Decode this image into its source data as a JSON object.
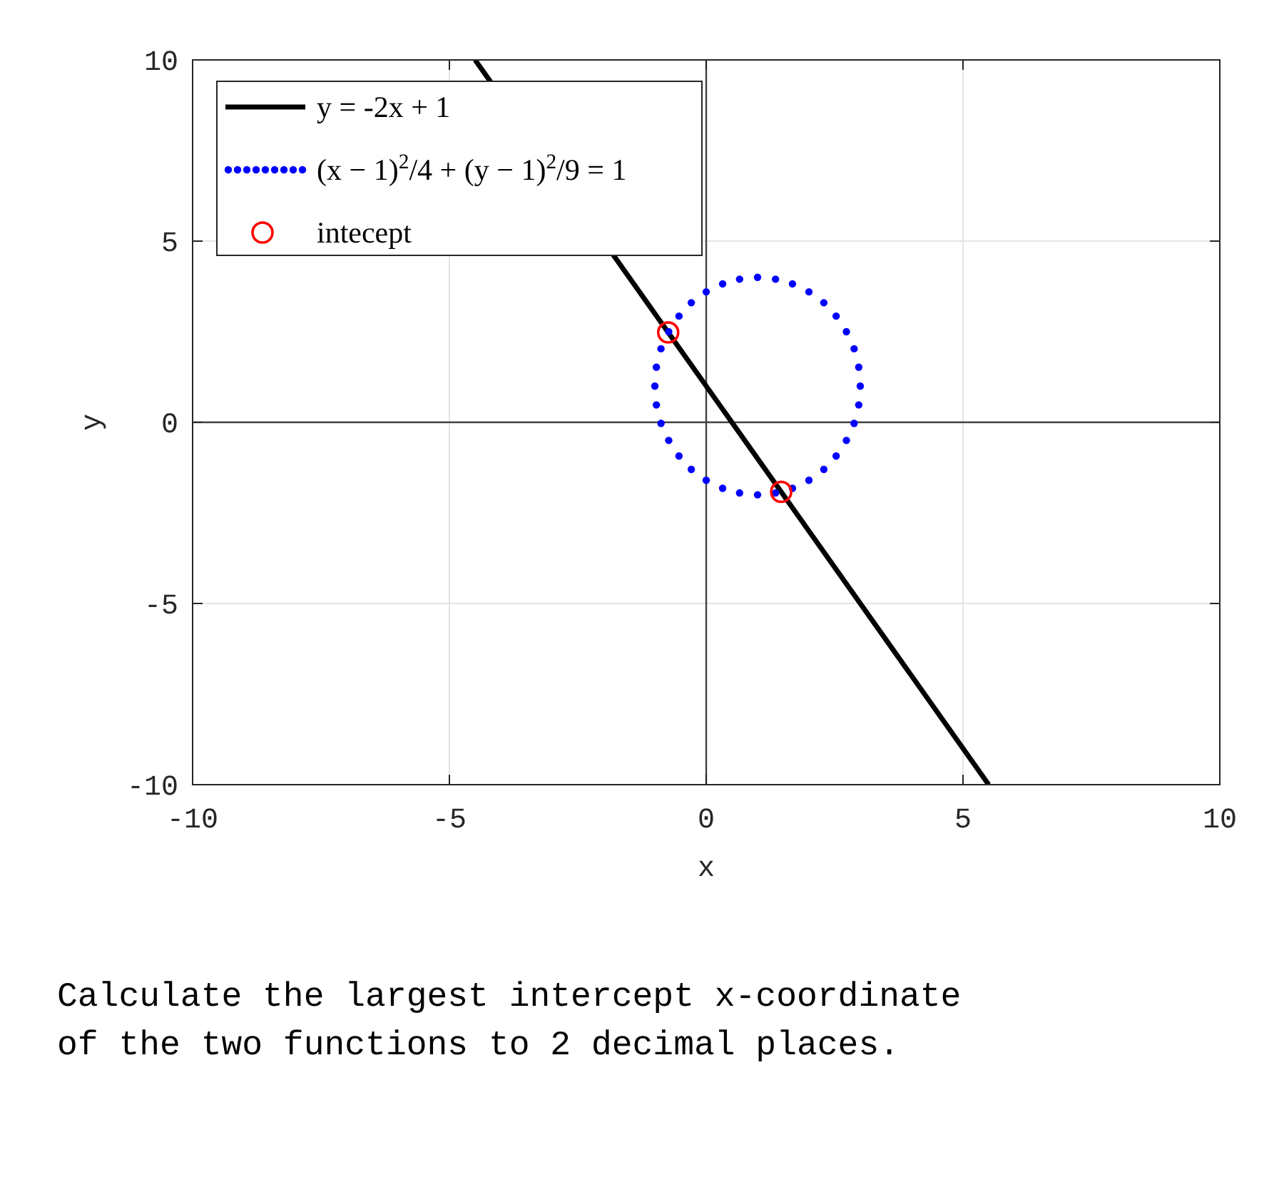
{
  "chart_data": {
    "type": "line",
    "xlabel": "x",
    "ylabel": "y",
    "xlim": [
      -10,
      10
    ],
    "ylim": [
      -10,
      10
    ],
    "xticks": [
      -10,
      -5,
      0,
      5,
      10
    ],
    "yticks": [
      -10,
      -5,
      0,
      5,
      10
    ],
    "grid": true,
    "legend": "top left",
    "series": [
      {
        "name": "y = -2x + 1",
        "type": "line",
        "color": "#000000",
        "x": [
          -4.5,
          5.5
        ],
        "values": [
          10,
          -10
        ]
      },
      {
        "name": "(x − 1)$^{2}$/4 + (y − 1)$^{2}$/9 = 1",
        "type": "scatter",
        "marker": "circle",
        "color": "#0000ff",
        "x": [
          3,
          2.97,
          2.88,
          2.73,
          2.53,
          2.29,
          2,
          1.68,
          1.35,
          1,
          0.65,
          0.32,
          0,
          -0.29,
          -0.53,
          -0.73,
          -0.88,
          -0.97,
          -1,
          -0.97,
          -0.88,
          -0.73,
          -0.53,
          -0.29,
          0,
          0.32,
          0.65,
          1,
          1.35,
          1.68,
          2,
          2.29,
          2.53,
          2.73,
          2.88,
          2.97
        ],
        "values": [
          1,
          1.52,
          2.03,
          2.5,
          2.93,
          3.3,
          3.6,
          3.82,
          3.95,
          4,
          3.95,
          3.82,
          3.6,
          3.3,
          2.93,
          2.5,
          2.03,
          1.52,
          1,
          0.48,
          -0.03,
          -0.5,
          -0.93,
          -1.3,
          -1.6,
          -1.82,
          -1.95,
          -2,
          -1.95,
          -1.82,
          -1.6,
          -1.3,
          -0.93,
          -0.5,
          -0.03,
          0.48
        ]
      },
      {
        "name": "intecept",
        "type": "scatter",
        "marker": "circle",
        "color": "#ff0000",
        "x": [
          -0.74,
          1.46
        ],
        "values": [
          2.48,
          -1.92
        ]
      }
    ],
    "annotations": [
      "Calculate the largest intercept x-coordinate of the two functions to 2 decimal places."
    ]
  }
}
